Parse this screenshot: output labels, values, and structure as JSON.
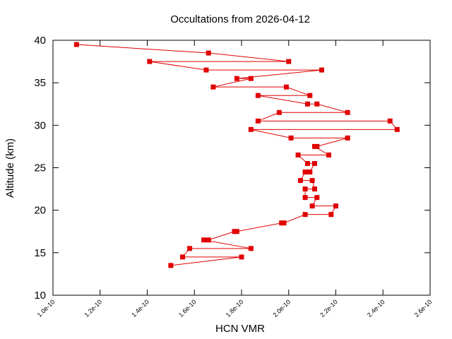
{
  "chart_data": {
    "type": "line",
    "title": "Occultations from 2026-04-12",
    "x_label": "HCN VMR",
    "y_label": "Altitude (km)",
    "series": [
      {
        "color": "#e00000",
        "x": [
          1.1e-10,
          1.66e-10,
          2e-10,
          1.41e-10,
          1.65e-10,
          2.14e-10,
          1.78e-10,
          1.84e-10,
          1.68e-10,
          1.99e-10,
          2.09e-10,
          1.87e-10,
          2.08e-10,
          2.12e-10,
          2.25e-10,
          1.96e-10,
          1.87e-10,
          2.43e-10,
          2.46e-10,
          1.84e-10,
          2.01e-10,
          2.25e-10,
          2.12e-10,
          2.11e-10,
          2.17e-10,
          2.04e-10,
          2.08e-10,
          2.11e-10,
          2.09e-10,
          2.07e-10,
          2.05e-10,
          2.1e-10,
          2.11e-10,
          2.07e-10,
          2.07e-10,
          2.12e-10,
          2.1e-10,
          2.2e-10,
          2.18e-10,
          2.07e-10,
          1.98e-10,
          1.97e-10,
          1.78e-10,
          1.77e-10,
          1.66e-10,
          1.64e-10,
          1.84e-10,
          1.58e-10,
          1.55e-10,
          1.8e-10,
          1.5e-10
        ],
        "values": [
          39.5,
          38.5,
          37.5,
          37.5,
          36.5,
          36.5,
          35.5,
          35.5,
          34.5,
          34.5,
          33.5,
          33.5,
          32.5,
          32.5,
          31.5,
          31.5,
          30.5,
          30.5,
          29.5,
          29.5,
          28.5,
          28.5,
          27.5,
          27.5,
          26.5,
          26.5,
          25.5,
          25.5,
          24.5,
          24.5,
          23.5,
          23.5,
          22.5,
          22.5,
          21.5,
          21.5,
          20.5,
          20.5,
          19.5,
          19.5,
          18.5,
          18.5,
          17.5,
          17.5,
          16.5,
          16.5,
          15.5,
          15.5,
          14.5,
          14.5,
          13.5
        ]
      }
    ],
    "xlim": [
      1e-10,
      2.6e-10
    ],
    "xticks": [
      {
        "value": 1e-10,
        "label": "1.0e-10"
      },
      {
        "value": 1.2e-10,
        "label": "1.2e-10"
      },
      {
        "value": 1.4e-10,
        "label": "1.4e-10"
      },
      {
        "value": 1.6e-10,
        "label": "1.6e-10"
      },
      {
        "value": 1.8e-10,
        "label": "1.8e-10"
      },
      {
        "value": 2e-10,
        "label": "2.0e-10"
      },
      {
        "value": 2.2e-10,
        "label": "2.2e-10"
      },
      {
        "value": 2.4e-10,
        "label": "2.4e-10"
      },
      {
        "value": 2.6e-10,
        "label": "2.6e-10"
      }
    ],
    "ylim": [
      10,
      40
    ],
    "yticks": [
      10,
      15,
      20,
      25,
      30,
      35,
      40
    ],
    "grid": false
  }
}
